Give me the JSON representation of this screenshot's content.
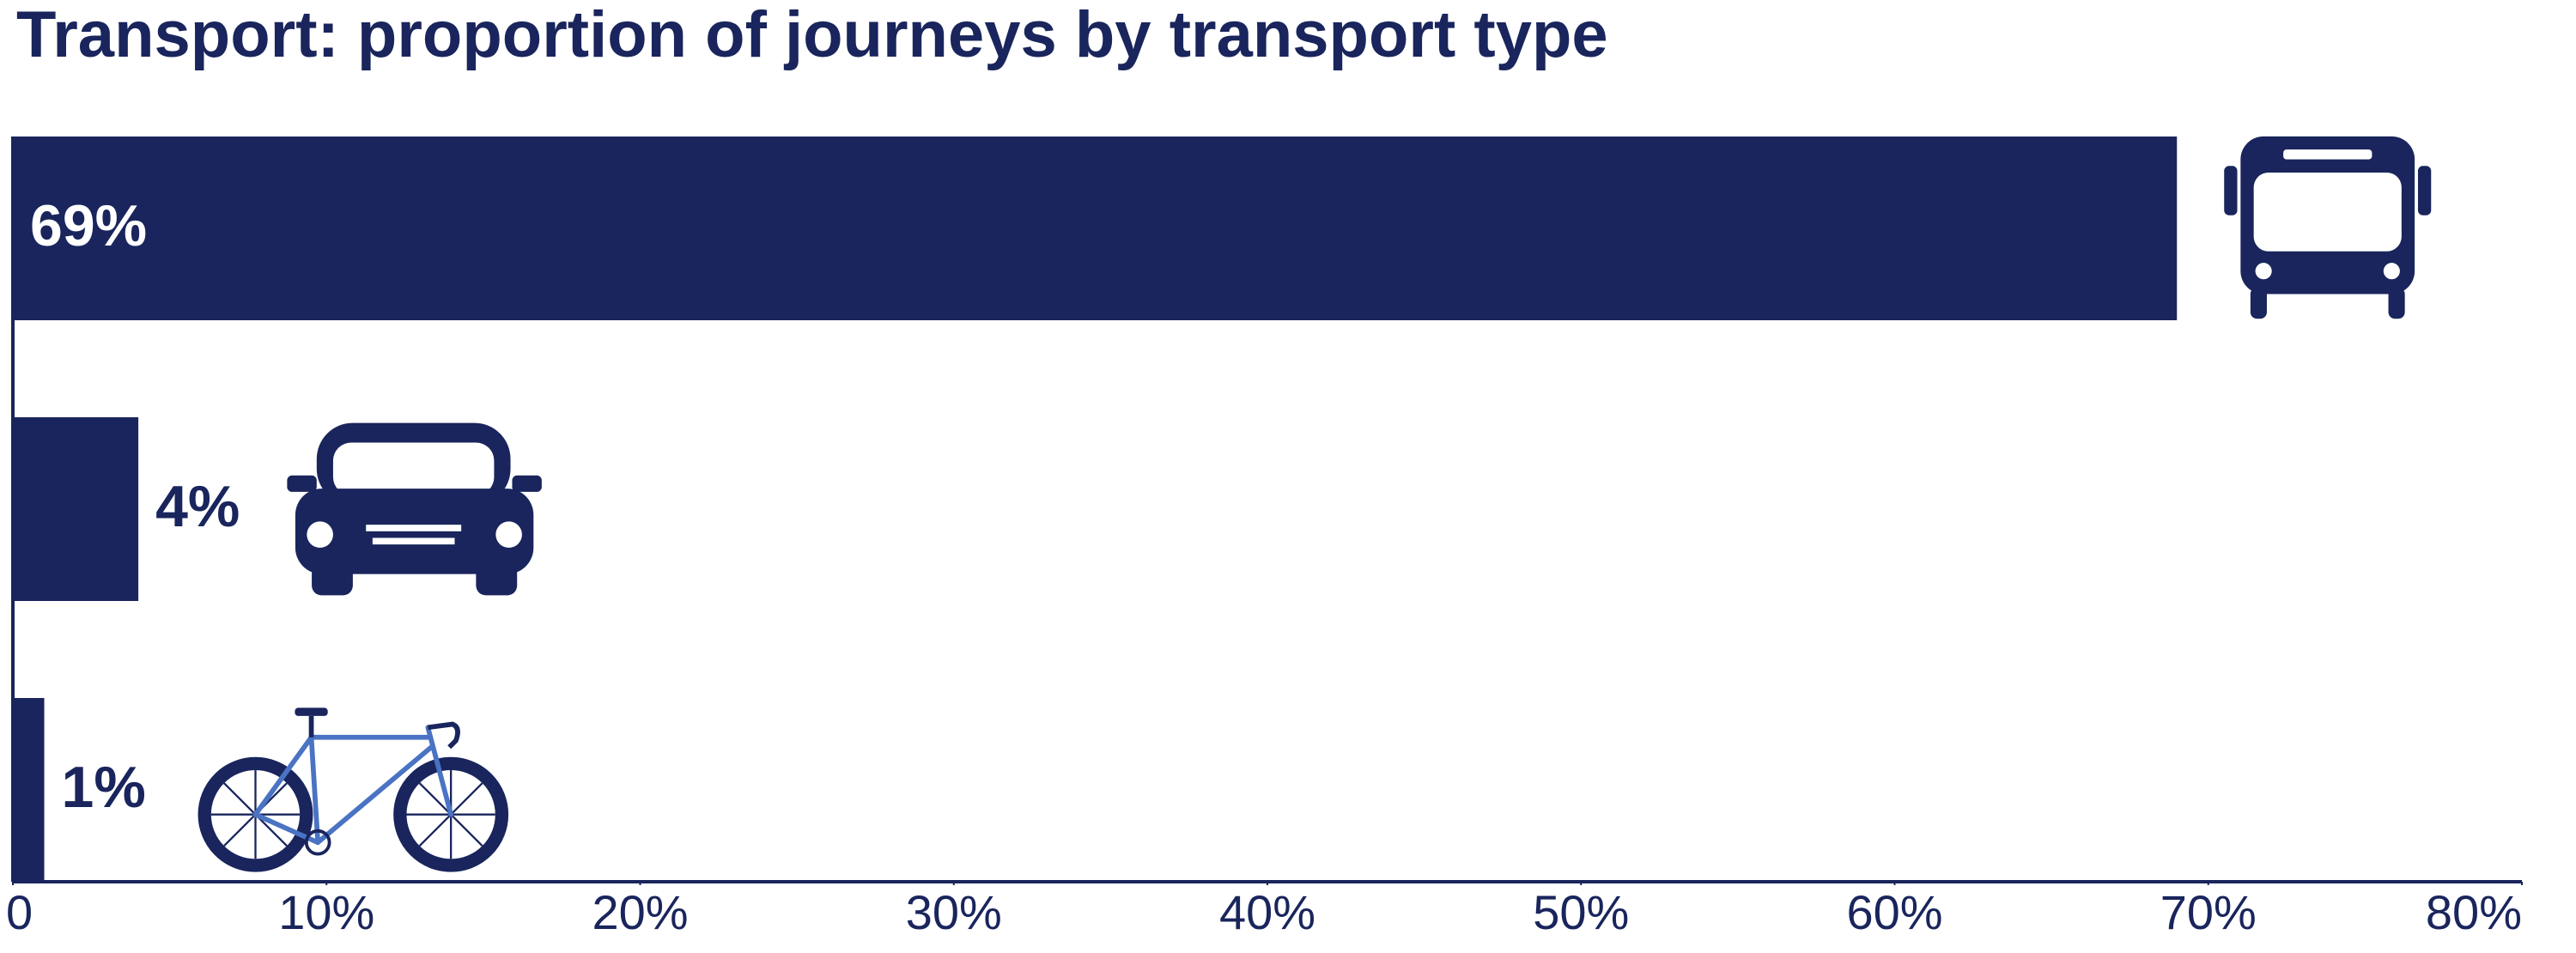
{
  "chart_data": {
    "type": "bar",
    "orientation": "horizontal",
    "title": "Transport: proportion of journeys by transport type",
    "categories": [
      null,
      null,
      null
    ],
    "values": [
      69,
      4,
      1
    ],
    "value_labels": [
      "69%",
      "4%",
      "1%"
    ],
    "color": "#19255c",
    "xlim": [
      0,
      80
    ],
    "xticks": [
      0,
      {
        "value": 10,
        "label": "10%"
      },
      {
        "value": 20,
        "label": "20%"
      },
      {
        "value": 30,
        "label": "30%"
      },
      {
        "value": 40,
        "label": "40%"
      },
      {
        "value": 50,
        "label": "50%"
      },
      {
        "value": 60,
        "label": "60%"
      },
      {
        "value": 70,
        "label": "70%"
      },
      {
        "value": 80,
        "label": "80%"
      }
    ],
    "grid": false
  }
}
